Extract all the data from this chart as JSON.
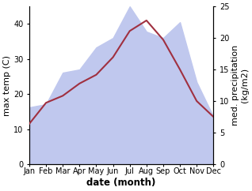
{
  "months": [
    "Jan",
    "Feb",
    "Mar",
    "Apr",
    "May",
    "Jun",
    "Jul",
    "Aug",
    "Sep",
    "Oct",
    "Nov",
    "Dec"
  ],
  "month_positions": [
    1,
    2,
    3,
    4,
    5,
    6,
    7,
    8,
    9,
    10,
    11,
    12
  ],
  "max_temp": [
    11.5,
    17.5,
    19.5,
    23.0,
    25.5,
    30.5,
    38.0,
    41.0,
    35.5,
    27.0,
    18.0,
    13.5
  ],
  "precipitation": [
    9.0,
    9.5,
    14.5,
    15.0,
    18.5,
    20.0,
    25.0,
    21.0,
    20.0,
    22.5,
    13.0,
    7.5
  ],
  "temp_ylim": [
    0,
    45
  ],
  "precip_ylim": [
    0,
    25
  ],
  "temp_color": "#a03040",
  "precip_fill_color": "#c0c8ee",
  "xlabel": "date (month)",
  "ylabel_left": "max temp (C)",
  "ylabel_right": "med. precipitation\n(kg/m2)",
  "tick_fontsize": 7.0,
  "label_fontsize": 8.0,
  "xlabel_fontsize": 8.5,
  "temp_yticks": [
    0,
    10,
    20,
    30,
    40
  ],
  "precip_yticks": [
    0,
    5,
    10,
    15,
    20,
    25
  ]
}
